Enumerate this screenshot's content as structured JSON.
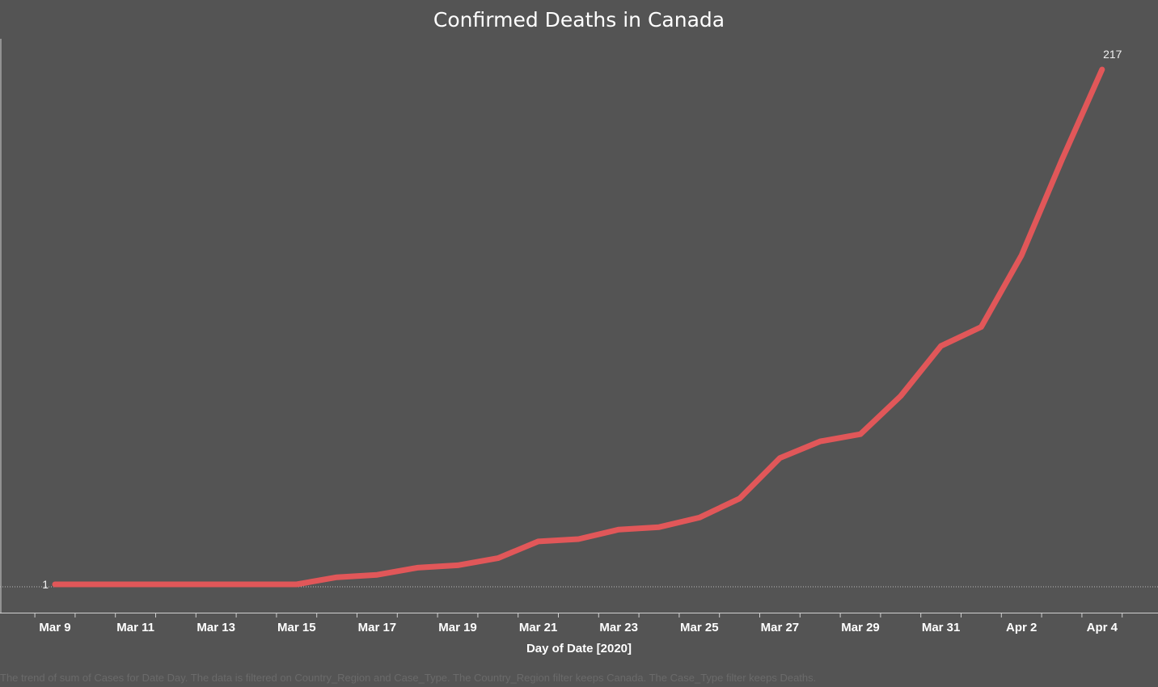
{
  "chart_data": {
    "type": "line",
    "title": "Confirmed Deaths in Canada",
    "xlabel": "Day of Date [2020]",
    "ylabel": "",
    "x": [
      "2020-03-09",
      "2020-03-10",
      "2020-03-11",
      "2020-03-12",
      "2020-03-13",
      "2020-03-14",
      "2020-03-15",
      "2020-03-16",
      "2020-03-17",
      "2020-03-18",
      "2020-03-19",
      "2020-03-20",
      "2020-03-21",
      "2020-03-22",
      "2020-03-23",
      "2020-03-24",
      "2020-03-25",
      "2020-03-26",
      "2020-03-27",
      "2020-03-28",
      "2020-03-29",
      "2020-03-30",
      "2020-03-31",
      "2020-04-01",
      "2020-04-02",
      "2020-04-03",
      "2020-04-04"
    ],
    "tick_labels": [
      "Mar 9",
      "Mar 11",
      "Mar 13",
      "Mar 15",
      "Mar 17",
      "Mar 19",
      "Mar 21",
      "Mar 23",
      "Mar 25",
      "Mar 27",
      "Mar 29",
      "Mar 31",
      "Apr 2",
      "Apr 4"
    ],
    "series": [
      {
        "values": [
          1,
          1,
          1,
          1,
          1,
          1,
          1,
          4,
          5,
          8,
          9,
          12,
          19,
          20,
          24,
          25,
          29,
          37,
          54,
          61,
          64,
          80,
          101,
          109,
          139,
          179,
          217
        ],
        "color": "#e15759"
      }
    ],
    "data_labels": [
      {
        "x": "2020-03-09",
        "text": "1"
      },
      {
        "x": "2020-04-04",
        "text": "217"
      }
    ],
    "reference_line": {
      "value": 1,
      "style": "dotted"
    },
    "ylim": [
      0,
      217
    ],
    "grid": false,
    "background": "#545454",
    "caption": "The trend of sum of Cases for Date Day. The data is filtered on Country_Region and Case_Type. The Country_Region filter keeps Canada. The Case_Type filter keeps Deaths."
  }
}
